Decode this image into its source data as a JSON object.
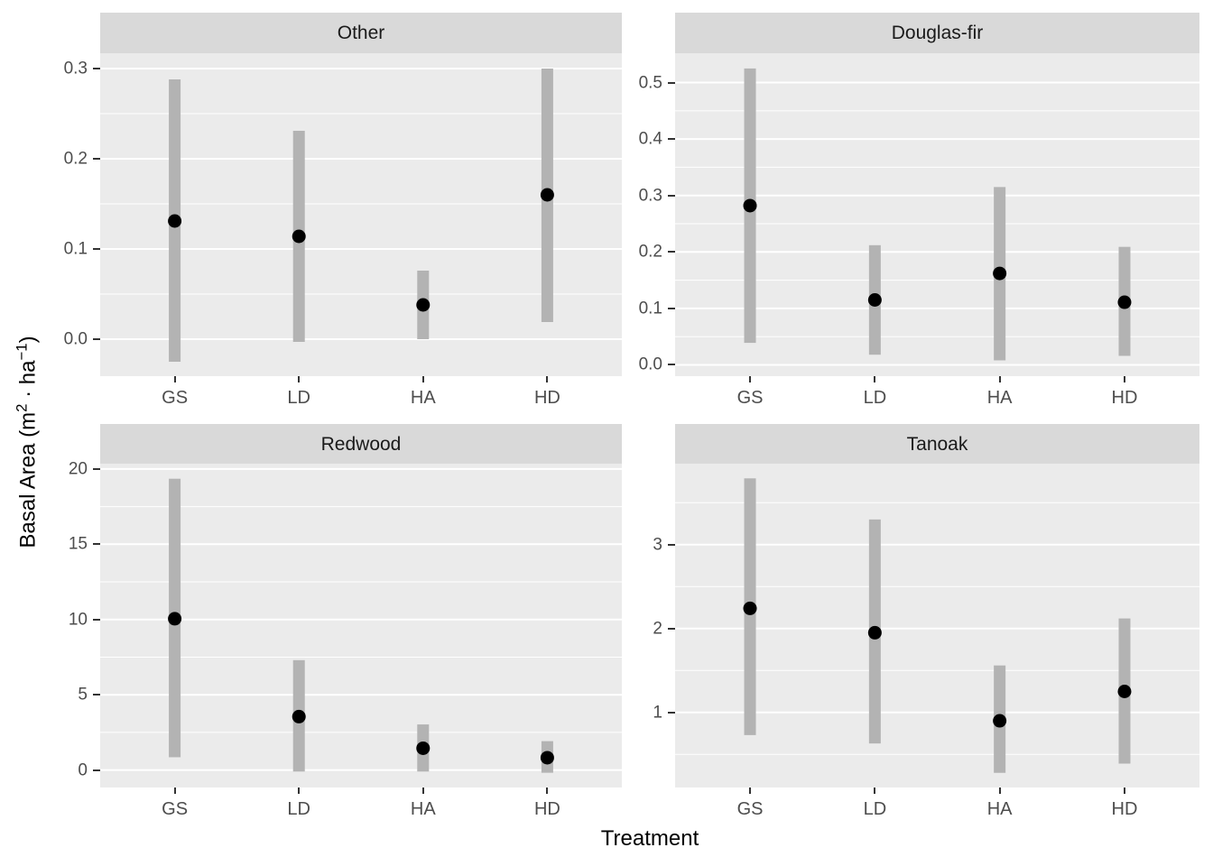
{
  "chart_data": {
    "type": "pointrange",
    "title": "",
    "xlabel": "Treatment",
    "ylabel": "Basal Area (m² · ha⁻¹)",
    "ylabel_parts": [
      {
        "text": "Basal Area (m"
      },
      {
        "text": "2",
        "sup": true
      },
      {
        "text": " · ha"
      },
      {
        "text": "−1",
        "sup": true
      },
      {
        "text": ")"
      }
    ],
    "categories": [
      "GS",
      "LD",
      "HA",
      "HD"
    ],
    "legend": "none",
    "grid": true,
    "facets": [
      {
        "label": "Other",
        "ylim": [
          -0.041,
          0.317
        ],
        "ytick_labels": [
          "0.0",
          "0.1",
          "0.2",
          "0.3"
        ],
        "ytick_values": [
          0.0,
          0.1,
          0.2,
          0.3
        ],
        "yminor_values": [
          0.05,
          0.15,
          0.25
        ],
        "series": [
          {
            "category": "GS",
            "estimate": 0.131,
            "lower": -0.025,
            "upper": 0.288
          },
          {
            "category": "LD",
            "estimate": 0.114,
            "lower": -0.003,
            "upper": 0.231
          },
          {
            "category": "HA",
            "estimate": 0.038,
            "lower": 0.0,
            "upper": 0.076
          },
          {
            "category": "HD",
            "estimate": 0.16,
            "lower": 0.019,
            "upper": 0.3
          }
        ]
      },
      {
        "label": "Douglas-fir",
        "ylim": [
          -0.02,
          0.552
        ],
        "ytick_labels": [
          "0.0",
          "0.1",
          "0.2",
          "0.3",
          "0.4",
          "0.5"
        ],
        "ytick_values": [
          0.0,
          0.1,
          0.2,
          0.3,
          0.4,
          0.5
        ],
        "yminor_values": [
          0.05,
          0.15,
          0.25,
          0.35,
          0.45
        ],
        "series": [
          {
            "category": "GS",
            "estimate": 0.282,
            "lower": 0.039,
            "upper": 0.525
          },
          {
            "category": "LD",
            "estimate": 0.115,
            "lower": 0.018,
            "upper": 0.212
          },
          {
            "category": "HA",
            "estimate": 0.162,
            "lower": 0.008,
            "upper": 0.315
          },
          {
            "category": "HD",
            "estimate": 0.111,
            "lower": 0.016,
            "upper": 0.209
          }
        ]
      },
      {
        "label": "Redwood",
        "ylim": [
          -1.16,
          20.35
        ],
        "ytick_labels": [
          "0",
          "5",
          "10",
          "15",
          "20"
        ],
        "ytick_values": [
          0,
          5,
          10,
          15,
          20
        ],
        "yminor_values": [
          2.5,
          7.5,
          12.5,
          17.5
        ],
        "series": [
          {
            "category": "GS",
            "estimate": 10.05,
            "lower": 0.85,
            "upper": 19.35
          },
          {
            "category": "LD",
            "estimate": 3.55,
            "lower": -0.1,
            "upper": 7.3
          },
          {
            "category": "HA",
            "estimate": 1.45,
            "lower": -0.1,
            "upper": 3.03
          },
          {
            "category": "HD",
            "estimate": 0.82,
            "lower": -0.18,
            "upper": 1.92
          }
        ]
      },
      {
        "label": "Tanoak",
        "ylim": [
          0.105,
          3.965
        ],
        "ytick_labels": [
          "1",
          "2",
          "3"
        ],
        "ytick_values": [
          1,
          2,
          3
        ],
        "yminor_values": [
          0.5,
          1.5,
          2.5,
          3.5
        ],
        "series": [
          {
            "category": "GS",
            "estimate": 2.24,
            "lower": 0.73,
            "upper": 3.79
          },
          {
            "category": "LD",
            "estimate": 1.95,
            "lower": 0.63,
            "upper": 3.3
          },
          {
            "category": "HA",
            "estimate": 0.9,
            "lower": 0.28,
            "upper": 1.56
          },
          {
            "category": "HD",
            "estimate": 1.25,
            "lower": 0.39,
            "upper": 2.12
          }
        ]
      }
    ],
    "style": {
      "panel_bg": "#ebebeb",
      "strip_bg": "#d9d9d9",
      "strip_text": "#1a1a1a",
      "grid_color": "#ffffff",
      "bar_color": "#b3b3b3",
      "point_color": "#000000",
      "axis_text_color": "#4d4d4d",
      "axis_title_color": "#000000",
      "tick_color": "#333333"
    }
  }
}
